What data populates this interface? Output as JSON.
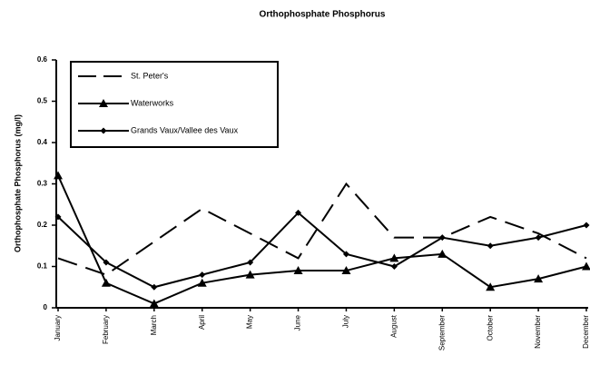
{
  "chart_data": {
    "type": "line",
    "title": "Orthophosphate  Phosphorus",
    "y_label": "Orthophosphate  Phosphorus  (mg/l)",
    "categories": [
      "January",
      "February",
      "March",
      "April",
      "May",
      "June",
      "July",
      "August",
      "September",
      "October",
      "November",
      "December"
    ],
    "series": [
      {
        "name": "St. Peter's",
        "color": "#000000",
        "dash": true,
        "marker": "none",
        "values": [
          0.12,
          0.08,
          0.16,
          0.24,
          0.18,
          0.12,
          0.3,
          0.17,
          0.17,
          0.22,
          0.18,
          0.12
        ]
      },
      {
        "name": "Waterworks",
        "color": "#000000",
        "dash": false,
        "marker": "triangle",
        "values": [
          0.32,
          0.06,
          0.01,
          0.06,
          0.08,
          0.09,
          0.09,
          0.12,
          0.13,
          0.05,
          0.07,
          0.1
        ]
      },
      {
        "name": "Grands Vaux/Vallee des Vaux",
        "color": "#000000",
        "dash": false,
        "marker": "diamond",
        "values": [
          0.22,
          0.11,
          0.05,
          0.08,
          0.11,
          0.23,
          0.13,
          0.1,
          0.17,
          0.15,
          0.17,
          0.2
        ]
      }
    ],
    "ylim": [
      0,
      0.6
    ],
    "yticks": [
      0,
      0.1,
      0.2,
      0.3,
      0.4,
      0.5,
      0.6
    ],
    "legend": "top-left"
  }
}
